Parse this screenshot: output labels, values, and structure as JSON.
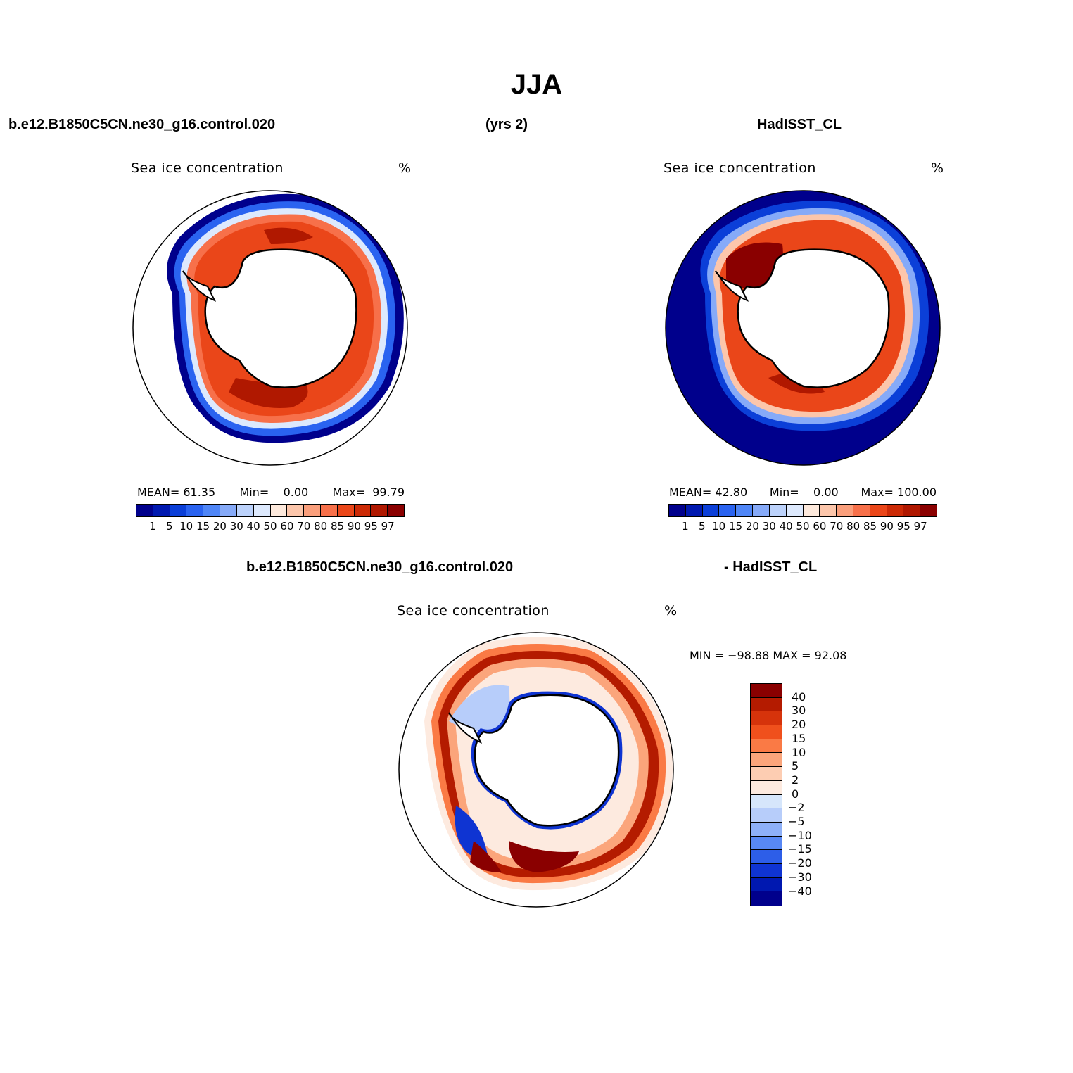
{
  "title": "JJA",
  "header": {
    "case_name": "b.e12.B1850C5CN.ne30_g16.control.020",
    "years": "(yrs 2)",
    "obs_name": "HadISST_CL"
  },
  "diff_header": {
    "left": "b.e12.B1850C5CN.ne30_g16.control.020",
    "right": "- HadISST_CL"
  },
  "panels": [
    {
      "var_label": "Sea ice concentration",
      "units": "%",
      "stats": {
        "mean_label": "MEAN=",
        "mean": "61.35",
        "min_label": "Min=",
        "min": "0.00",
        "max_label": "Max=",
        "max": "99.79"
      }
    },
    {
      "var_label": "Sea ice concentration",
      "units": "%",
      "stats": {
        "mean_label": "MEAN=",
        "mean": "42.80",
        "min_label": "Min=",
        "min": "0.00",
        "max_label": "Max=",
        "max": "100.00"
      }
    },
    {
      "var_label": "Sea ice concentration",
      "units": "%",
      "stats_text": "MIN = −98.88  MAX =   92.08"
    }
  ],
  "colorbar": {
    "levels": [
      "1",
      "5",
      "10",
      "15",
      "20",
      "30",
      "40",
      "50",
      "60",
      "70",
      "80",
      "85",
      "90",
      "95",
      "97"
    ],
    "colors": [
      "#00008c",
      "#0019b0",
      "#0b3fd8",
      "#2a63f0",
      "#4f86f7",
      "#86aaf8",
      "#bcd2fb",
      "#dde9fd",
      "#fde9dc",
      "#fcc6ab",
      "#fa9f7c",
      "#f7704a",
      "#ea4619",
      "#cc2a06",
      "#b01800",
      "#8a0000"
    ]
  },
  "diff_colorbar": {
    "levels": [
      "40",
      "30",
      "20",
      "15",
      "10",
      "5",
      "2",
      "0",
      "−2",
      "−5",
      "−10",
      "−15",
      "−20",
      "−30",
      "−40"
    ],
    "colors": [
      "#8a0000",
      "#b41b00",
      "#d6330b",
      "#f0501c",
      "#fa7a45",
      "#fba57b",
      "#fdcdb2",
      "#fdeadf",
      "#d6e6fb",
      "#b7cdfa",
      "#8eb0f8",
      "#5888f4",
      "#2d5ee8",
      "#0f34d2",
      "#0018b0",
      "#00008c"
    ]
  }
}
